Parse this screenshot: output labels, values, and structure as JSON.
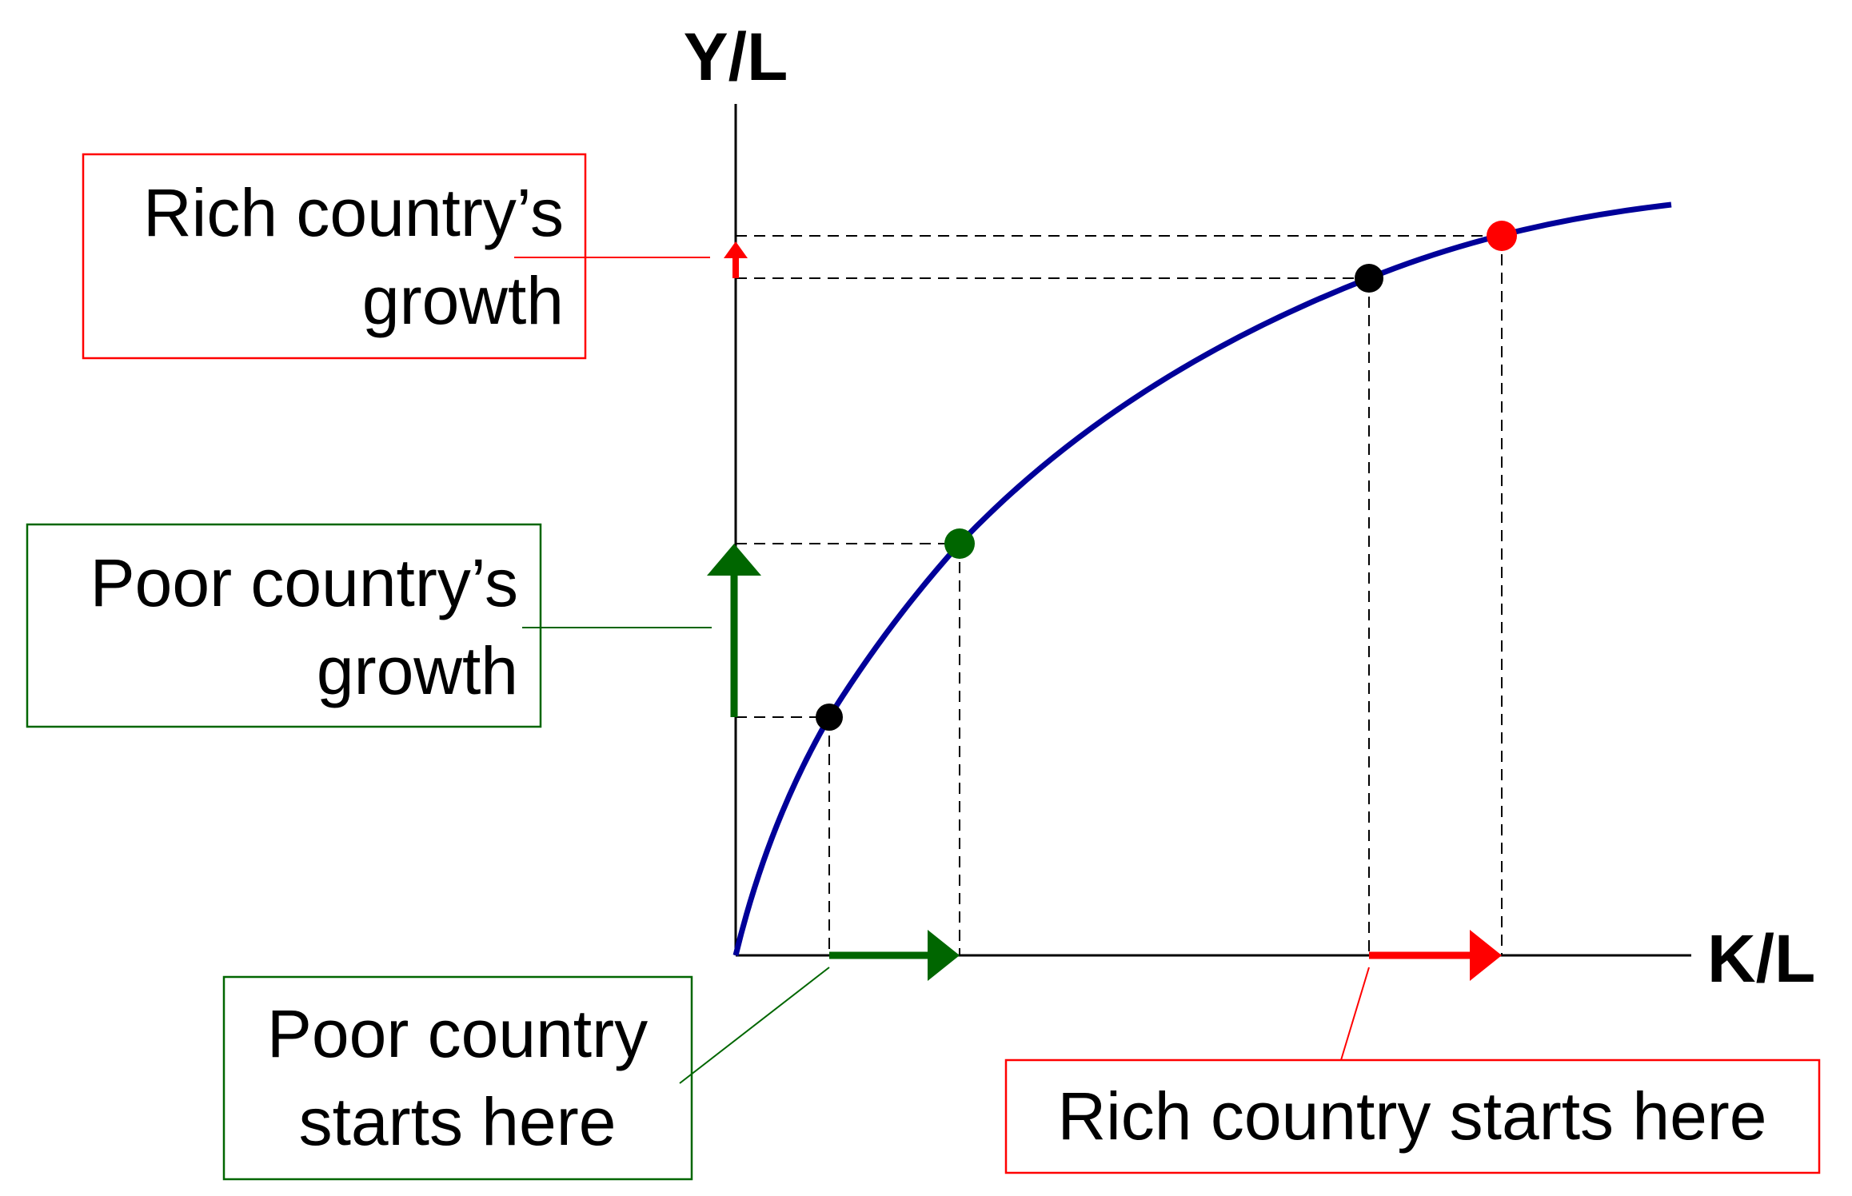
{
  "axes": {
    "y_label": "Y/L",
    "x_label": "K/L"
  },
  "callouts": {
    "rich_growth": [
      "Rich country’s",
      "growth"
    ],
    "poor_growth": [
      "Poor country’s",
      "growth"
    ],
    "poor_start": [
      "Poor country",
      "starts here"
    ],
    "rich_start": [
      "Rich country starts here"
    ]
  },
  "colors": {
    "curve": "#000099",
    "poor": "#006600",
    "rich": "#ff0000",
    "start_point": "#000000"
  }
}
